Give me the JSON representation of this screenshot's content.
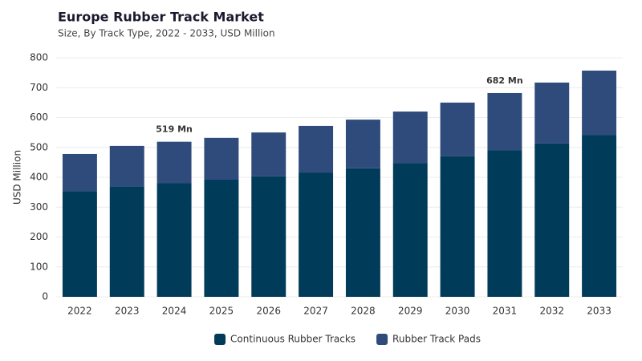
{
  "chart_data": {
    "type": "stacked_bar",
    "title": "Europe Rubber Track Market",
    "subtitle": "Size, By Track Type, 2022 - 2033, USD Million",
    "y_label": "USD Million",
    "categories": [
      "2022",
      "2023",
      "2024",
      "2025",
      "2026",
      "2027",
      "2028",
      "2029",
      "2030",
      "2031",
      "2032",
      "2033"
    ],
    "series": [
      {
        "name": "Continuous Rubber Tracks",
        "color": "#003b59",
        "values": [
          354,
          370,
          381,
          392,
          403,
          416,
          430,
          448,
          470,
          491,
          513,
          542
        ]
      },
      {
        "name": "Rubber Track Pads",
        "color": "#2e4b7b",
        "values": [
          124,
          135,
          138,
          140,
          147,
          156,
          163,
          172,
          180,
          191,
          204,
          215
        ]
      }
    ],
    "annotations": [
      {
        "category": "2024",
        "value": 519,
        "label": "519 Mn"
      },
      {
        "category": "2031",
        "value": 682,
        "label": "682 Mn"
      }
    ],
    "ylim": [
      0,
      800
    ],
    "yticks": [
      0,
      100,
      200,
      300,
      400,
      500,
      600,
      700,
      800
    ],
    "grid": true,
    "legend": "bottom"
  }
}
